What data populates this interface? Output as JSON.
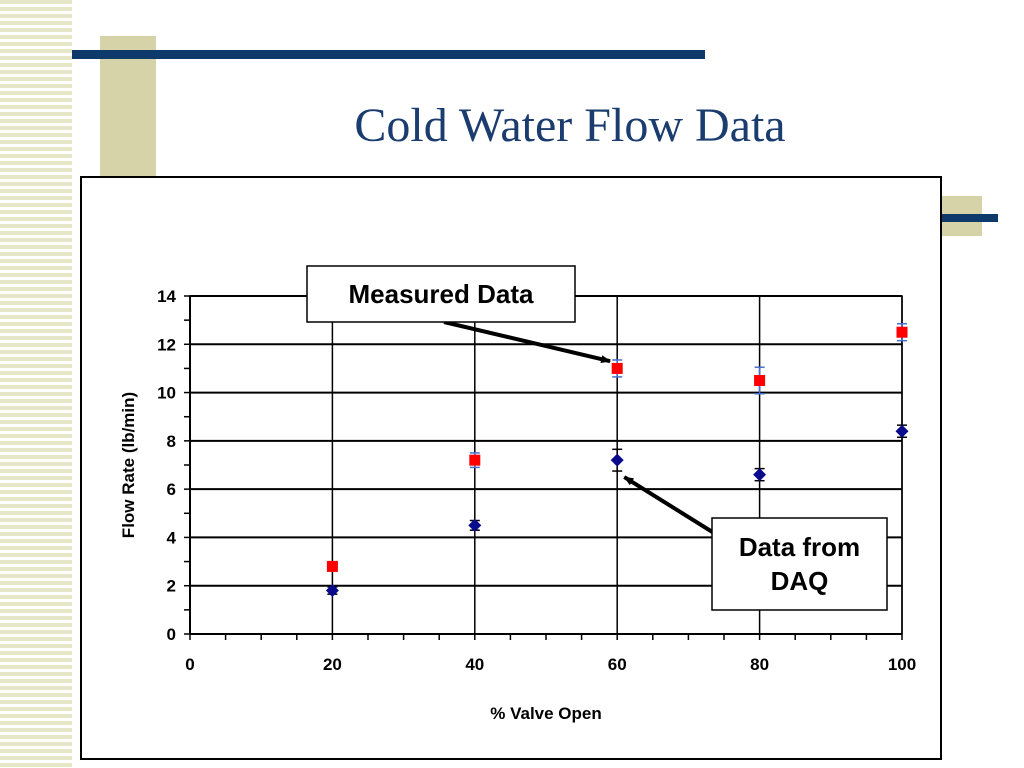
{
  "slide": {
    "title": "Cold Water Flow Data"
  },
  "chart_data": {
    "type": "scatter",
    "xlabel": "% Valve Open",
    "ylabel": "Flow Rate (lb/min)",
    "xlim": [
      0,
      100
    ],
    "ylim": [
      0,
      14
    ],
    "xticks": [
      0,
      20,
      40,
      60,
      80,
      100
    ],
    "yticks": [
      0,
      2,
      4,
      6,
      8,
      10,
      12,
      14
    ],
    "grid": true,
    "series": [
      {
        "id": "measured",
        "marker": "square",
        "color": "#ff0000",
        "errcolor": "#4a6fd0",
        "x": [
          20,
          40,
          60,
          80,
          100
        ],
        "y": [
          2.8,
          7.2,
          11.0,
          10.5,
          12.5
        ],
        "err": [
          0.15,
          0.3,
          0.35,
          0.55,
          0.35
        ]
      },
      {
        "id": "daq",
        "marker": "diamond",
        "color": "#0a0a8c",
        "errcolor": "#000000",
        "x": [
          20,
          40,
          60,
          80,
          100
        ],
        "y": [
          1.8,
          4.5,
          7.2,
          6.6,
          8.4
        ],
        "err": [
          0.15,
          0.2,
          0.45,
          0.25,
          0.25
        ]
      }
    ],
    "annotations": [
      {
        "id": "measured",
        "lines": [
          "Measured Data"
        ],
        "target": [
          59,
          11.3
        ]
      },
      {
        "id": "daq",
        "lines": [
          "Data from",
          "DAQ"
        ],
        "target": [
          61,
          6.5
        ]
      }
    ]
  }
}
